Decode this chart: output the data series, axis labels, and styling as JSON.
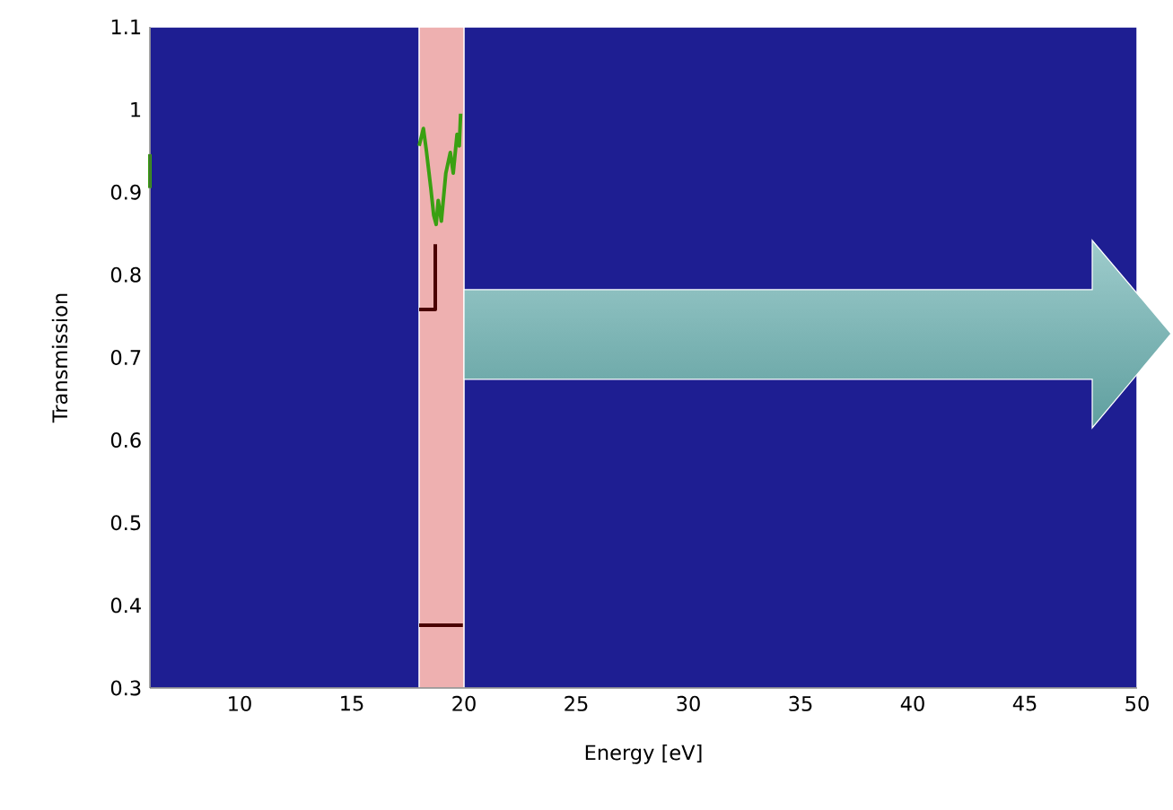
{
  "chart_data": {
    "type": "line",
    "xlabel": "Energy [eV]",
    "ylabel": "Transmission",
    "xlim": [
      6,
      50
    ],
    "ylim": [
      0.3,
      1.1
    ],
    "xticks": [
      10,
      15,
      20,
      25,
      30,
      35,
      40,
      45,
      50
    ],
    "yticks": [
      0.3,
      0.4,
      0.5,
      0.6,
      0.7,
      0.8,
      0.9,
      1,
      1.1
    ],
    "grid": false,
    "marker": "none",
    "line_style": "solid",
    "bands": [
      {
        "axis": "x",
        "from": 6,
        "to": 50,
        "color": "#1e1e92"
      },
      {
        "axis": "x",
        "from": 18,
        "to": 20,
        "color": "#eeb0b0"
      }
    ],
    "series": [
      {
        "color": "#3aa012",
        "x": [
          18.0,
          18.19,
          18.32,
          18.52,
          18.65,
          18.76,
          18.85,
          18.99,
          19.19,
          19.39,
          19.52,
          19.69,
          19.79,
          19.85
        ],
        "values": [
          0.956,
          0.977,
          0.951,
          0.905,
          0.872,
          0.861,
          0.89,
          0.865,
          0.923,
          0.948,
          0.923,
          0.97,
          0.956,
          0.995
        ]
      },
      {
        "color": "#3aa012",
        "x": [
          6,
          6
        ],
        "values": [
          0.905,
          0.946
        ]
      },
      {
        "color": "#4a0000",
        "x": [
          18.0,
          18.72,
          18.72
        ],
        "values": [
          0.758,
          0.758,
          0.837
        ]
      },
      {
        "color": "#4a0000",
        "x": [
          18.0,
          19.95
        ],
        "values": [
          0.376,
          0.376
        ]
      }
    ]
  }
}
